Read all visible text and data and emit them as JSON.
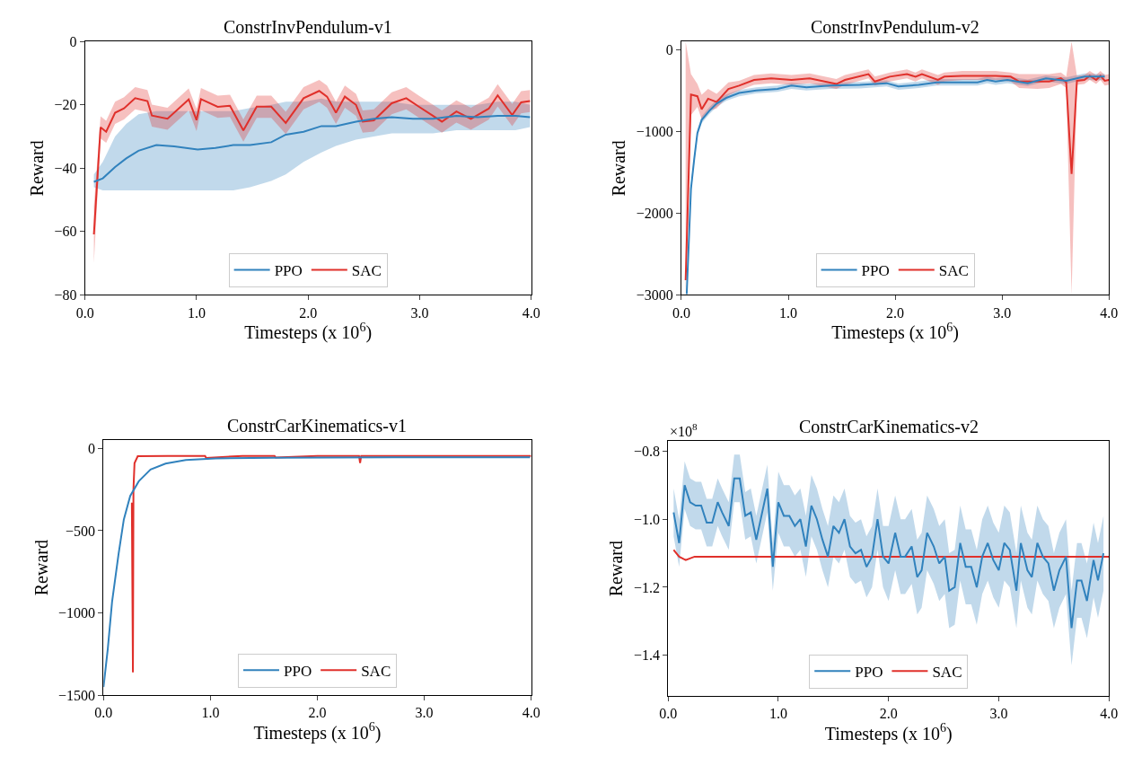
{
  "chart_data": [
    {
      "type": "line",
      "title": "ConstrInvPendulum-v1",
      "xlabel": "Timesteps (x 10$^{6}$)",
      "ylabel": "Reward",
      "legend": "bottom",
      "marker": "none",
      "xlim": [
        0,
        4
      ],
      "xticks": [
        {
          "value": 0,
          "label": "0.0"
        },
        {
          "value": 1,
          "label": "1.0"
        },
        {
          "value": 2,
          "label": "2.0"
        },
        {
          "value": 3,
          "label": "3.0"
        },
        {
          "value": 4,
          "label": "4.0"
        }
      ],
      "ylim": [
        -80,
        0
      ],
      "yticks": [
        0,
        {
          "value": -20,
          "label": "−20"
        },
        {
          "value": -40,
          "label": "−40"
        },
        {
          "value": -60,
          "label": "−60"
        },
        {
          "value": -80,
          "label": "−80"
        }
      ],
      "series": [
        {
          "name": "PPO",
          "color": "#3182bd",
          "x": [
            0.08,
            0.16,
            0.27,
            0.37,
            0.48,
            0.64,
            0.8,
            1.01,
            1.17,
            1.33,
            1.48,
            1.67,
            1.8,
            1.96,
            2.12,
            2.25,
            2.43,
            2.59,
            2.75,
            2.94,
            3.12,
            3.33,
            3.52,
            3.7,
            3.86,
            3.99
          ],
          "values": [
            -44.3,
            -43.2,
            -39.6,
            -36.9,
            -34.5,
            -32.7,
            -33.1,
            -34.1,
            -33.6,
            -32.7,
            -32.7,
            -31.8,
            -29.4,
            -28.5,
            -26.7,
            -26.7,
            -25.3,
            -24.4,
            -23.9,
            -24.4,
            -24.4,
            -23.5,
            -23.9,
            -23.5,
            -23.5,
            -23.9
          ],
          "lower": [
            -46,
            -47,
            -47,
            -47,
            -47,
            -47,
            -47,
            -47,
            -47,
            -47,
            -46,
            -44,
            -42,
            -38,
            -35,
            -33,
            -31,
            -30,
            -29,
            -29,
            -29,
            -28,
            -28,
            -28,
            -28,
            -27
          ],
          "upper": [
            -42,
            -38,
            -30,
            -26,
            -23,
            -22,
            -22,
            -22,
            -22,
            -22,
            -21,
            -20,
            -19,
            -19,
            -18,
            -19,
            -19,
            -19,
            -19,
            -20,
            -20,
            -20,
            -20,
            -19,
            -19,
            -20
          ]
        },
        {
          "name": "SAC",
          "color": "#e0302b",
          "x": [
            0.08,
            0.14,
            0.19,
            0.27,
            0.35,
            0.45,
            0.56,
            0.6,
            0.74,
            0.93,
            1.0,
            1.04,
            1.19,
            1.3,
            1.42,
            1.54,
            1.67,
            1.8,
            1.96,
            2.1,
            2.17,
            2.25,
            2.33,
            2.43,
            2.49,
            2.59,
            2.75,
            2.88,
            2.99,
            3.2,
            3.33,
            3.46,
            3.62,
            3.7,
            3.83,
            3.91,
            3.99
          ],
          "values": [
            -60.9,
            -27.1,
            -28.5,
            -22.5,
            -21.1,
            -17.9,
            -18.8,
            -23.4,
            -24.4,
            -18.3,
            -24.8,
            -18.2,
            -20.6,
            -20.3,
            -28.1,
            -20.6,
            -20.6,
            -25.7,
            -17.9,
            -15.6,
            -17.4,
            -22.5,
            -17.4,
            -20.0,
            -25.3,
            -24.9,
            -19.5,
            -17.9,
            -20.5,
            -25.3,
            -22.1,
            -24.4,
            -21.2,
            -17.0,
            -23.2,
            -19.2,
            -18.8
          ],
          "lower": [
            -70,
            -30.6,
            -32.0,
            -26.0,
            -24.6,
            -21.4,
            -22.3,
            -26.9,
            -27.9,
            -21.8,
            -28.3,
            -21.7,
            -24.1,
            -23.8,
            -31.6,
            -24.1,
            -24.1,
            -29.2,
            -21.4,
            -19.1,
            -20.9,
            -26.0,
            -20.9,
            -23.5,
            -28.8,
            -28.4,
            -23.0,
            -21.4,
            -24.0,
            -28.8,
            -25.6,
            -27.9,
            -24.7,
            -20.5,
            -26.7,
            -22.7,
            -22.3
          ],
          "upper": [
            -52,
            -23.6,
            -25.0,
            -19.0,
            -17.6,
            -14.4,
            -15.3,
            -19.9,
            -20.9,
            -14.8,
            -21.3,
            -14.7,
            -17.1,
            -16.8,
            -24.6,
            -17.1,
            -17.1,
            -22.2,
            -14.4,
            -12.1,
            -13.9,
            -19.0,
            -13.9,
            -16.5,
            -21.8,
            -21.4,
            -16.0,
            -14.4,
            -17.0,
            -21.8,
            -18.6,
            -20.9,
            -17.7,
            -13.5,
            -19.7,
            -15.7,
            -15.3
          ]
        }
      ]
    },
    {
      "type": "line",
      "title": "ConstrInvPendulum-v2",
      "xlabel": "Timesteps (x 10$^{6}$)",
      "ylabel": "Reward",
      "legend": "bottom",
      "marker": "none",
      "xlim": [
        0,
        4
      ],
      "xticks": [
        {
          "value": 0,
          "label": "0.0"
        },
        {
          "value": 1,
          "label": "1.0"
        },
        {
          "value": 2,
          "label": "2.0"
        },
        {
          "value": 3,
          "label": "3.0"
        },
        {
          "value": 4,
          "label": "4.0"
        }
      ],
      "ylim": [
        -3000,
        100
      ],
      "yticks": [
        0,
        {
          "value": -1000,
          "label": "−1000"
        },
        {
          "value": -2000,
          "label": "−2000"
        },
        {
          "value": -3000,
          "label": "−3000"
        }
      ],
      "series": [
        {
          "name": "PPO",
          "color": "#3182bd",
          "x": [
            0.05,
            0.09,
            0.12,
            0.15,
            0.19,
            0.26,
            0.33,
            0.42,
            0.54,
            0.7,
            0.9,
            1.03,
            1.17,
            1.39,
            1.67,
            1.92,
            2.03,
            2.22,
            2.39,
            2.63,
            2.77,
            2.86,
            2.94,
            3.05,
            3.24,
            3.41,
            3.6,
            3.77,
            3.88,
            3.96
          ],
          "values": [
            -2990,
            -1700,
            -1340,
            -1020,
            -860,
            -750,
            -660,
            -590,
            -530,
            -500,
            -480,
            -440,
            -460,
            -440,
            -430,
            -410,
            -450,
            -430,
            -400,
            -400,
            -400,
            -370,
            -390,
            -370,
            -410,
            -350,
            -380,
            -330,
            -330,
            -330
          ],
          "lower": [
            -3000,
            -1760,
            -1390,
            -1060,
            -900,
            -790,
            -700,
            -625,
            -570,
            -535,
            -515,
            -480,
            -500,
            -480,
            -475,
            -450,
            -490,
            -470,
            -440,
            -440,
            -440,
            -410,
            -430,
            -410,
            -445,
            -390,
            -420,
            -365,
            -375,
            -370
          ],
          "upper": [
            -2900,
            -1640,
            -1290,
            -980,
            -815,
            -705,
            -615,
            -545,
            -495,
            -460,
            -440,
            -405,
            -420,
            -405,
            -395,
            -375,
            -415,
            -390,
            -360,
            -360,
            -360,
            -330,
            -350,
            -330,
            -365,
            -315,
            -340,
            -290,
            -295,
            -295
          ]
        },
        {
          "name": "SAC",
          "color": "#e0302b",
          "x": [
            0.04,
            0.09,
            0.15,
            0.19,
            0.25,
            0.33,
            0.44,
            0.54,
            0.68,
            0.84,
            1.03,
            1.2,
            1.45,
            1.53,
            1.75,
            1.81,
            1.95,
            2.11,
            2.19,
            2.25,
            2.4,
            2.46,
            2.63,
            2.77,
            2.94,
            3.08,
            3.16,
            3.33,
            3.44,
            3.55,
            3.6,
            3.65,
            3.7,
            3.77,
            3.82,
            3.88,
            3.92,
            3.96,
            4.0
          ],
          "values": [
            -2820,
            -550,
            -570,
            -730,
            -600,
            -640,
            -480,
            -440,
            -370,
            -350,
            -370,
            -350,
            -420,
            -370,
            -300,
            -390,
            -330,
            -300,
            -330,
            -300,
            -370,
            -330,
            -320,
            -320,
            -320,
            -330,
            -390,
            -390,
            -390,
            -350,
            -400,
            -1520,
            -380,
            -370,
            -320,
            -370,
            -320,
            -380,
            -370
          ],
          "lower": [
            -3000,
            -800,
            -700,
            -850,
            -750,
            -720,
            -560,
            -500,
            -430,
            -410,
            -430,
            -410,
            -480,
            -430,
            -350,
            -440,
            -390,
            -350,
            -390,
            -350,
            -430,
            -390,
            -370,
            -370,
            -370,
            -390,
            -470,
            -480,
            -470,
            -420,
            -470,
            -3000,
            -430,
            -420,
            -370,
            -420,
            -370,
            -440,
            -430
          ],
          "upper": [
            100,
            -300,
            -420,
            -550,
            -480,
            -540,
            -400,
            -380,
            -310,
            -290,
            -310,
            -290,
            -360,
            -310,
            -240,
            -330,
            -280,
            -240,
            -280,
            -240,
            -310,
            -280,
            -260,
            -260,
            -260,
            -280,
            -300,
            -300,
            -300,
            -280,
            -330,
            100,
            -320,
            -310,
            -260,
            -310,
            -260,
            -310,
            -300
          ]
        }
      ]
    },
    {
      "type": "line",
      "title": "ConstrCarKinematics-v1",
      "xlabel": "Timesteps (x 10$^{6}$)",
      "ylabel": "Reward",
      "legend": "bottom",
      "marker": "none",
      "xlim": [
        0,
        4
      ],
      "xticks": [
        {
          "value": 0,
          "label": "0.0"
        },
        {
          "value": 1,
          "label": "1.0"
        },
        {
          "value": 2,
          "label": "2.0"
        },
        {
          "value": 3,
          "label": "3.0"
        },
        {
          "value": 4,
          "label": "4.0"
        }
      ],
      "ylim": [
        -1500,
        50
      ],
      "yticks": [
        0,
        {
          "value": -500,
          "label": "−500"
        },
        {
          "value": -1000,
          "label": "−1000"
        },
        {
          "value": -1500,
          "label": "−1500"
        }
      ],
      "series": [
        {
          "name": "PPO",
          "color": "#3182bd",
          "x": [
            0,
            0.04,
            0.08,
            0.14,
            0.19,
            0.25,
            0.33,
            0.44,
            0.58,
            0.77,
            1.05,
            1.6,
            2.7,
            3.99
          ],
          "values": [
            -1450,
            -1218,
            -932,
            -646,
            -432,
            -289,
            -200,
            -129,
            -93,
            -71,
            -61,
            -57,
            -54,
            -54
          ]
        },
        {
          "name": "SAC",
          "color": "#e0302b",
          "x": [
            0.265,
            0.275,
            0.28,
            0.29,
            0.32,
            0.6,
            0.95,
            0.96,
            1.3,
            1.6,
            1.61,
            2.0,
            2.39,
            2.4,
            2.41,
            2.8,
            3.2,
            3.6,
            4.0
          ],
          "values": [
            -330,
            -1361,
            -250,
            -90,
            -48,
            -46,
            -46,
            -58,
            -46,
            -46,
            -56,
            -46,
            -46,
            -89,
            -46,
            -46,
            -47,
            -46,
            -46
          ]
        }
      ]
    },
    {
      "type": "line",
      "title": "ConstrCarKinematics-v2",
      "xlabel": "Timesteps (x 10$^{6}$)",
      "ylabel": "Reward",
      "legend": "bottom",
      "marker": "none",
      "annotations": [
        "×10$^{8}$"
      ],
      "xlim": [
        0,
        4
      ],
      "xticks": [
        {
          "value": 0,
          "label": "0.0"
        },
        {
          "value": 1,
          "label": "1.0"
        },
        {
          "value": 2,
          "label": "2.0"
        },
        {
          "value": 3,
          "label": "3.0"
        },
        {
          "value": 4,
          "label": "4.0"
        }
      ],
      "ylim": [
        -1.52,
        -0.77
      ],
      "yticks": [
        {
          "value": -0.8,
          "label": "−0.8"
        },
        {
          "value": -1.0,
          "label": "−1.0"
        },
        {
          "value": -1.2,
          "label": "−1.2"
        },
        {
          "value": -1.4,
          "label": "−1.4"
        }
      ],
      "series": [
        {
          "name": "PPO",
          "color": "#3182bd",
          "x": [
            0.05,
            0.1,
            0.15,
            0.2,
            0.25,
            0.3,
            0.35,
            0.4,
            0.45,
            0.49,
            0.55,
            0.6,
            0.65,
            0.7,
            0.75,
            0.8,
            0.9,
            0.95,
            1.0,
            1.05,
            1.1,
            1.15,
            1.2,
            1.25,
            1.3,
            1.35,
            1.4,
            1.45,
            1.5,
            1.55,
            1.6,
            1.65,
            1.7,
            1.75,
            1.8,
            1.85,
            1.9,
            1.95,
            2.0,
            2.06,
            2.11,
            2.15,
            2.21,
            2.26,
            2.3,
            2.35,
            2.41,
            2.46,
            2.51,
            2.55,
            2.6,
            2.65,
            2.7,
            2.75,
            2.8,
            2.85,
            2.9,
            2.95,
            3.0,
            3.05,
            3.1,
            3.16,
            3.2,
            3.26,
            3.3,
            3.35,
            3.4,
            3.45,
            3.5,
            3.55,
            3.61,
            3.66,
            3.71,
            3.75,
            3.8,
            3.86,
            3.9,
            3.95
          ],
          "values": [
            -0.98,
            -1.07,
            -0.9,
            -0.95,
            -0.96,
            -0.96,
            -1.01,
            -1.01,
            -0.95,
            -0.98,
            -1.02,
            -0.88,
            -0.88,
            -0.99,
            -0.98,
            -1.06,
            -0.91,
            -1.14,
            -0.95,
            -0.99,
            -0.99,
            -1.02,
            -1.0,
            -1.08,
            -0.96,
            -1.0,
            -1.06,
            -1.11,
            -1.02,
            -1.04,
            -1.0,
            -1.08,
            -1.1,
            -1.09,
            -1.14,
            -1.11,
            -1.0,
            -1.11,
            -1.13,
            -1.04,
            -1.11,
            -1.11,
            -1.08,
            -1.17,
            -1.15,
            -1.04,
            -1.08,
            -1.13,
            -1.11,
            -1.21,
            -1.2,
            -1.07,
            -1.14,
            -1.14,
            -1.2,
            -1.11,
            -1.07,
            -1.12,
            -1.15,
            -1.07,
            -1.09,
            -1.21,
            -1.07,
            -1.15,
            -1.17,
            -1.07,
            -1.11,
            -1.13,
            -1.21,
            -1.15,
            -1.11,
            -1.32,
            -1.18,
            -1.18,
            -1.24,
            -1.12,
            -1.18,
            -1.1
          ],
          "lower": [
            -1.05,
            -1.14,
            -0.97,
            -1.02,
            -1.03,
            -1.03,
            -1.08,
            -1.08,
            -1.02,
            -1.05,
            -1.09,
            -0.95,
            -0.95,
            -1.06,
            -1.05,
            -1.13,
            -0.98,
            -1.21,
            -1.04,
            -1.08,
            -1.08,
            -1.11,
            -1.09,
            -1.17,
            -1.05,
            -1.09,
            -1.15,
            -1.2,
            -1.11,
            -1.13,
            -1.09,
            -1.17,
            -1.19,
            -1.18,
            -1.23,
            -1.2,
            -1.09,
            -1.2,
            -1.24,
            -1.15,
            -1.22,
            -1.22,
            -1.19,
            -1.28,
            -1.26,
            -1.15,
            -1.19,
            -1.24,
            -1.22,
            -1.32,
            -1.31,
            -1.18,
            -1.25,
            -1.25,
            -1.31,
            -1.22,
            -1.18,
            -1.23,
            -1.26,
            -1.18,
            -1.2,
            -1.32,
            -1.18,
            -1.26,
            -1.28,
            -1.18,
            -1.22,
            -1.24,
            -1.32,
            -1.26,
            -1.22,
            -1.43,
            -1.29,
            -1.29,
            -1.35,
            -1.23,
            -1.29,
            -1.21
          ],
          "upper": [
            -0.91,
            -1.0,
            -0.83,
            -0.88,
            -0.89,
            -0.89,
            -0.94,
            -0.94,
            -0.88,
            -0.91,
            -0.95,
            -0.81,
            -0.81,
            -0.92,
            -0.91,
            -0.99,
            -0.84,
            -1.07,
            -0.86,
            -0.9,
            -0.9,
            -0.93,
            -0.91,
            -0.99,
            -0.87,
            -0.91,
            -0.97,
            -1.02,
            -0.93,
            -0.95,
            -0.91,
            -0.99,
            -1.01,
            -1.0,
            -1.05,
            -1.02,
            -0.91,
            -1.02,
            -1.02,
            -0.93,
            -1.0,
            -1.0,
            -0.97,
            -1.06,
            -1.04,
            -0.93,
            -0.97,
            -1.02,
            -1.0,
            -1.1,
            -1.09,
            -0.96,
            -1.03,
            -1.03,
            -1.09,
            -1.0,
            -0.96,
            -1.01,
            -1.04,
            -0.96,
            -0.98,
            -1.1,
            -0.96,
            -1.04,
            -1.06,
            -0.96,
            -1.0,
            -1.02,
            -1.1,
            -1.04,
            -1.0,
            -1.21,
            -1.07,
            -1.07,
            -1.13,
            -1.01,
            -1.07,
            -0.99
          ]
        },
        {
          "name": "SAC",
          "color": "#e0302b",
          "x": [
            0.05,
            0.1,
            0.16,
            0.24,
            0.35,
            0.5,
            0.75,
            1.0,
            1.25,
            1.5,
            1.75,
            2.0,
            2.25,
            2.5,
            2.75,
            3.0,
            3.25,
            3.5,
            3.75,
            4.0
          ],
          "values": [
            -1.09,
            -1.11,
            -1.12,
            -1.11,
            -1.11,
            -1.11,
            -1.11,
            -1.11,
            -1.11,
            -1.11,
            -1.11,
            -1.11,
            -1.11,
            -1.11,
            -1.11,
            -1.11,
            -1.11,
            -1.11,
            -1.11,
            -1.11
          ]
        }
      ]
    }
  ]
}
